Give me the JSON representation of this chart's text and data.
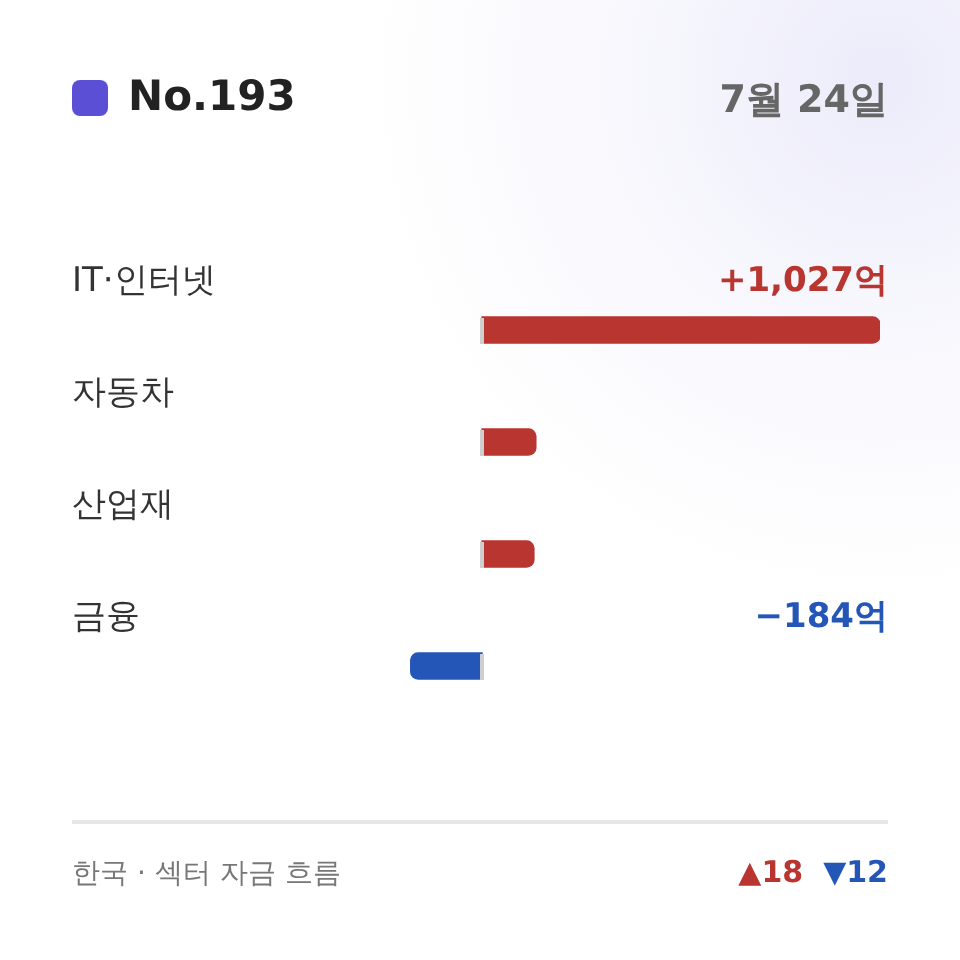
{
  "chart_data": {
    "type": "bar",
    "orientation": "horizontal",
    "title": "No.193",
    "subtitle": "7월 24일",
    "categories": [
      "IT·인터넷",
      "자동차",
      "산업재",
      "금융"
    ],
    "values": [
      1027,
      139,
      134,
      -184
    ],
    "colors": [
      "#b83530",
      "#b83530",
      "#b83530",
      "#2456b8"
    ],
    "value_labels": [
      "+1,027억",
      null,
      null,
      "−184억"
    ],
    "annotations": [
      "한국 · 섹터 자금 흐름",
      "▲18",
      "▼12"
    ]
  }
}
